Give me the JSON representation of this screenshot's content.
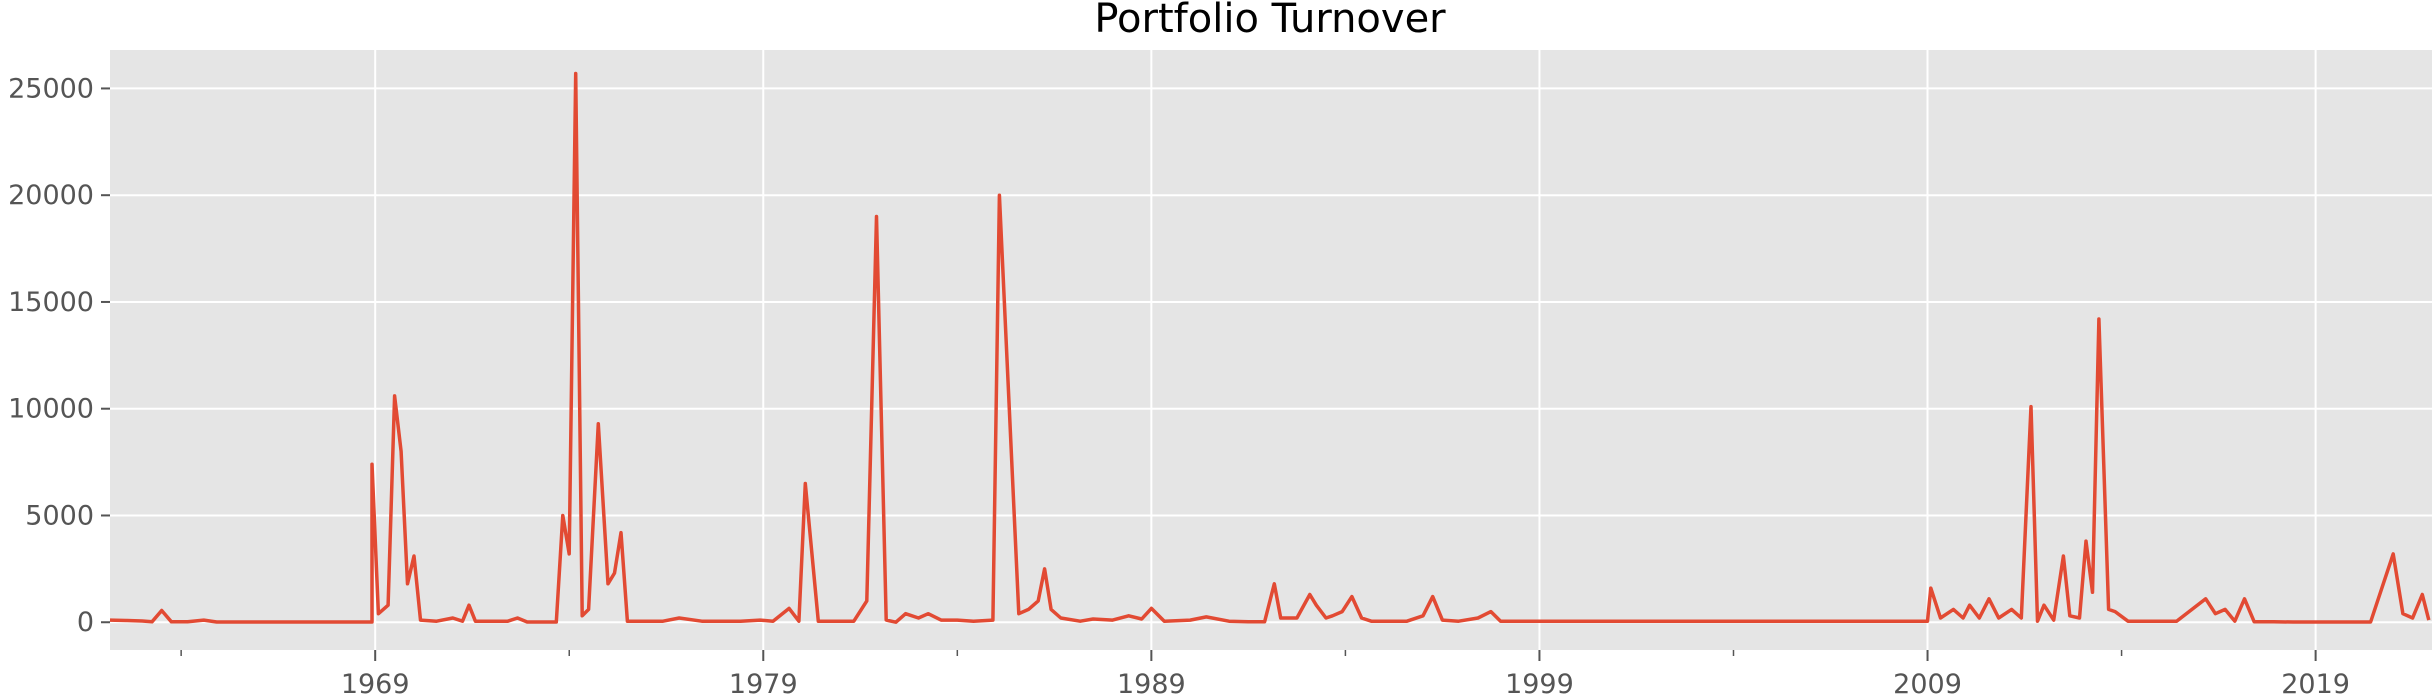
{
  "chart_data": {
    "type": "line",
    "title": "Portfolio Turnover",
    "xlabel": "",
    "ylabel": "",
    "x_axis": {
      "type": "date",
      "range": [
        "1962-03-01",
        "2021-12-31"
      ],
      "major_tick_labels": [
        "1969",
        "1979",
        "1989",
        "1999",
        "2009",
        "2019"
      ],
      "minor_ticks": [
        "1964",
        "1974",
        "1984",
        "1994",
        "2004",
        "2014"
      ]
    },
    "y_axis": {
      "range": [
        -1300,
        26800
      ],
      "tick_values": [
        0,
        5000,
        10000,
        15000,
        20000,
        25000
      ],
      "tick_labels": [
        "0",
        "5000",
        "10000",
        "15000",
        "20000",
        "25000"
      ]
    },
    "grid": true,
    "style": {
      "background": "#e5e5e5",
      "grid_color": "#ffffff",
      "line_color": "#e24a33"
    },
    "series": [
      {
        "name": "",
        "color": "#e24a33",
        "points": [
          [
            "1962-03",
            100
          ],
          [
            "1962-08",
            80
          ],
          [
            "1963-01",
            60
          ],
          [
            "1963-04",
            20
          ],
          [
            "1963-07",
            550
          ],
          [
            "1963-10",
            20
          ],
          [
            "1964-03",
            20
          ],
          [
            "1964-08",
            100
          ],
          [
            "1964-12",
            10
          ],
          [
            "1966-01",
            10
          ],
          [
            "1967-01",
            10
          ],
          [
            "1968-01",
            10
          ],
          [
            "1968-06",
            10
          ],
          [
            "1968-12",
            10
          ],
          [
            "1968-12",
            7400
          ],
          [
            "1969-02",
            400
          ],
          [
            "1969-05",
            800
          ],
          [
            "1969-07",
            10600
          ],
          [
            "1969-09",
            8000
          ],
          [
            "1969-11",
            1800
          ],
          [
            "1970-01",
            3100
          ],
          [
            "1970-03",
            100
          ],
          [
            "1970-08",
            50
          ],
          [
            "1971-01",
            200
          ],
          [
            "1971-04",
            50
          ],
          [
            "1971-06",
            800
          ],
          [
            "1971-08",
            50
          ],
          [
            "1972-06",
            50
          ],
          [
            "1972-09",
            200
          ],
          [
            "1972-12",
            10
          ],
          [
            "1973-04",
            10
          ],
          [
            "1973-09",
            10
          ],
          [
            "1973-11",
            5000
          ],
          [
            "1974-01",
            3200
          ],
          [
            "1974-03",
            25700
          ],
          [
            "1974-05",
            300
          ],
          [
            "1974-07",
            600
          ],
          [
            "1974-10",
            9300
          ],
          [
            "1975-01",
            1800
          ],
          [
            "1975-03",
            2300
          ],
          [
            "1975-05",
            4200
          ],
          [
            "1975-07",
            50
          ],
          [
            "1976-01",
            50
          ],
          [
            "1976-06",
            50
          ],
          [
            "1976-11",
            200
          ],
          [
            "1977-06",
            50
          ],
          [
            "1978-06",
            50
          ],
          [
            "1978-12",
            100
          ],
          [
            "1979-04",
            50
          ],
          [
            "1979-09",
            650
          ],
          [
            "1979-12",
            50
          ],
          [
            "1980-02",
            6500
          ],
          [
            "1980-06",
            50
          ],
          [
            "1980-11",
            50
          ],
          [
            "1981-05",
            50
          ],
          [
            "1981-09",
            1000
          ],
          [
            "1981-12",
            19000
          ],
          [
            "1982-03",
            100
          ],
          [
            "1982-06",
            0
          ],
          [
            "1982-09",
            400
          ],
          [
            "1983-01",
            200
          ],
          [
            "1983-04",
            400
          ],
          [
            "1983-08",
            100
          ],
          [
            "1984-01",
            100
          ],
          [
            "1984-06",
            50
          ],
          [
            "1984-12",
            100
          ],
          [
            "1985-02",
            20000
          ],
          [
            "1985-08",
            400
          ],
          [
            "1985-11",
            600
          ],
          [
            "1986-02",
            1000
          ],
          [
            "1986-04",
            2500
          ],
          [
            "1986-06",
            600
          ],
          [
            "1986-09",
            200
          ],
          [
            "1987-03",
            50
          ],
          [
            "1987-07",
            150
          ],
          [
            "1988-01",
            100
          ],
          [
            "1988-06",
            300
          ],
          [
            "1988-10",
            150
          ],
          [
            "1989-01",
            650
          ],
          [
            "1989-05",
            50
          ],
          [
            "1990-01",
            100
          ],
          [
            "1990-06",
            250
          ],
          [
            "1991-01",
            50
          ],
          [
            "1991-07",
            20
          ],
          [
            "1991-12",
            20
          ],
          [
            "1992-03",
            1800
          ],
          [
            "1992-05",
            200
          ],
          [
            "1992-10",
            200
          ],
          [
            "1993-02",
            1300
          ],
          [
            "1993-04",
            800
          ],
          [
            "1993-07",
            200
          ],
          [
            "1993-09",
            300
          ],
          [
            "1993-12",
            500
          ],
          [
            "1994-03",
            1200
          ],
          [
            "1994-06",
            200
          ],
          [
            "1994-09",
            50
          ],
          [
            "1995-03",
            50
          ],
          [
            "1995-08",
            50
          ],
          [
            "1996-01",
            300
          ],
          [
            "1996-04",
            1200
          ],
          [
            "1996-07",
            100
          ],
          [
            "1996-12",
            50
          ],
          [
            "1997-06",
            200
          ],
          [
            "1997-10",
            500
          ],
          [
            "1998-01",
            50
          ],
          [
            "2001-01",
            50
          ],
          [
            "2004-01",
            50
          ],
          [
            "2006-01",
            50
          ],
          [
            "2008-06",
            50
          ],
          [
            "2009-01",
            50
          ],
          [
            "2009-02",
            1600
          ],
          [
            "2009-05",
            200
          ],
          [
            "2009-09",
            600
          ],
          [
            "2009-12",
            200
          ],
          [
            "2010-02",
            800
          ],
          [
            "2010-05",
            200
          ],
          [
            "2010-08",
            1100
          ],
          [
            "2010-11",
            200
          ],
          [
            "2011-03",
            600
          ],
          [
            "2011-06",
            200
          ],
          [
            "2011-09",
            10100
          ],
          [
            "2011-11",
            50
          ],
          [
            "2012-01",
            800
          ],
          [
            "2012-04",
            100
          ],
          [
            "2012-07",
            3100
          ],
          [
            "2012-09",
            300
          ],
          [
            "2012-12",
            200
          ],
          [
            "2013-02",
            3800
          ],
          [
            "2013-04",
            1400
          ],
          [
            "2013-06",
            14200
          ],
          [
            "2013-09",
            600
          ],
          [
            "2013-11",
            500
          ],
          [
            "2014-03",
            50
          ],
          [
            "2014-08",
            50
          ],
          [
            "2015-01",
            50
          ],
          [
            "2015-06",
            50
          ],
          [
            "2016-03",
            1100
          ],
          [
            "2016-06",
            400
          ],
          [
            "2016-09",
            600
          ],
          [
            "2016-12",
            50
          ],
          [
            "2017-03",
            1100
          ],
          [
            "2017-06",
            20
          ],
          [
            "2017-12",
            20
          ],
          [
            "2018-06",
            10
          ],
          [
            "2018-12",
            10
          ],
          [
            "2019-06",
            10
          ],
          [
            "2020-01",
            10
          ],
          [
            "2020-06",
            10
          ],
          [
            "2021-01",
            3200
          ],
          [
            "2021-04",
            400
          ],
          [
            "2021-07",
            200
          ],
          [
            "2021-10",
            1300
          ],
          [
            "2021-12",
            100
          ]
        ]
      }
    ]
  }
}
